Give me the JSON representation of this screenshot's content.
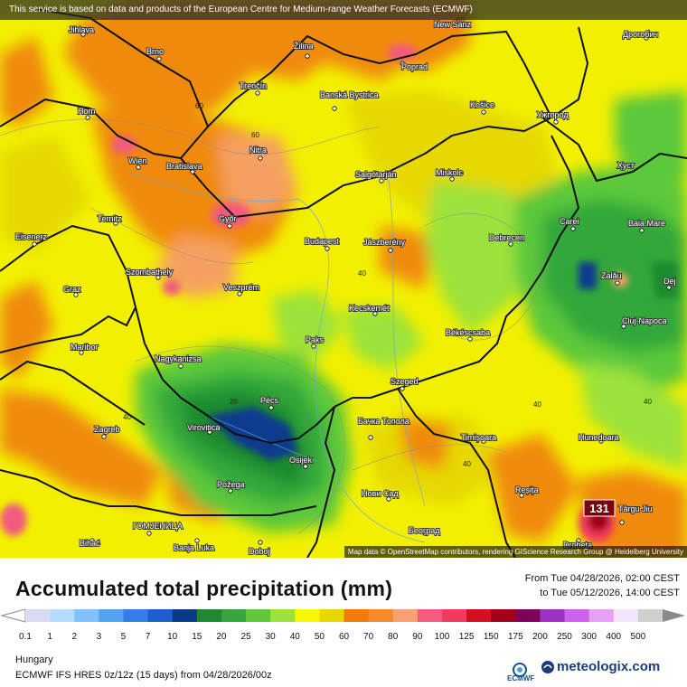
{
  "disclaimer": "This service is based on data and products of the European Centre for Medium-range Weather Forecasts (ECMWF)",
  "attribution": "Map data © OpenStreetMap contributors, rendering GIScience Research Group @ Heidelberg University",
  "title": "Accumulated total precipitation (mm)",
  "period": {
    "from": "From Tue 04/28/2026, 02:00 CEST",
    "to": "to Tue 05/12/2026, 14:00 CEST"
  },
  "region": "Hungary",
  "model_info": "ECMWF IFS HRES 0z/12z (15 days) from 04/28/2026/00z",
  "branding": {
    "ecmwf": "ECMWF",
    "site": "meteologix.com"
  },
  "legend": {
    "labels": [
      "0.1",
      "1",
      "2",
      "3",
      "5",
      "7",
      "10",
      "15",
      "20",
      "25",
      "30",
      "40",
      "50",
      "60",
      "70",
      "80",
      "90",
      "100",
      "125",
      "150",
      "175",
      "200",
      "250",
      "300",
      "400",
      "500"
    ],
    "colors": [
      "#d9d9f2",
      "#b4dcff",
      "#7fc2ff",
      "#4ea4f5",
      "#2f7fe6",
      "#1d5fd0",
      "#0a3a8e",
      "#1e8a2e",
      "#33a83a",
      "#5cc83a",
      "#9be23a",
      "#f7f700",
      "#e8d800",
      "#f07a0a",
      "#f58a2a",
      "#f8a070",
      "#f25a80",
      "#f03a5e",
      "#d41020",
      "#a00018",
      "#80005a",
      "#a030c8",
      "#d060f0",
      "#e8a0f8",
      "#f4e4fb",
      "#d0d0d0"
    ]
  },
  "map": {
    "cities": [
      {
        "name": "Jihlava"
      },
      {
        "name": "Brno"
      },
      {
        "name": "Žilina"
      },
      {
        "name": "Poprad"
      },
      {
        "name": "Дрогобич"
      },
      {
        "name": "Trenčín"
      },
      {
        "name": "Banská Bystrica"
      },
      {
        "name": "Košice"
      },
      {
        "name": "Ужгород"
      },
      {
        "name": "Horn"
      },
      {
        "name": "Wien"
      },
      {
        "name": "Bratislava"
      },
      {
        "name": "Nitra"
      },
      {
        "name": "Salgótarján"
      },
      {
        "name": "Miskolc"
      },
      {
        "name": "Хуст"
      },
      {
        "name": "Ternitz"
      },
      {
        "name": "Győr"
      },
      {
        "name": "Carei"
      },
      {
        "name": "Baia Mare"
      },
      {
        "name": "Eisenerz"
      },
      {
        "name": "Budapest"
      },
      {
        "name": "Jászberény"
      },
      {
        "name": "Debrecen"
      },
      {
        "name": "Szombathely"
      },
      {
        "name": "Zalău"
      },
      {
        "name": "Dej"
      },
      {
        "name": "Graz"
      },
      {
        "name": "Veszprém"
      },
      {
        "name": "Kecskemét"
      },
      {
        "name": "Cluj-Napoca"
      },
      {
        "name": "Békéscsaba"
      },
      {
        "name": "Maribor"
      },
      {
        "name": "Paks"
      },
      {
        "name": "Nagykanizsa"
      },
      {
        "name": "Szeged"
      },
      {
        "name": "Pécs"
      },
      {
        "name": "Zagreb"
      },
      {
        "name": "Virovitica"
      },
      {
        "name": "Бачка Топола"
      },
      {
        "name": "Timișoara"
      },
      {
        "name": "Hunedoara"
      },
      {
        "name": "Osijek"
      },
      {
        "name": "Požega"
      },
      {
        "name": "Нови Сад"
      },
      {
        "name": "Reșița"
      },
      {
        "name": "Târgu Jiu"
      },
      {
        "name": "ГОМЈЕНИЦА"
      },
      {
        "name": "Bihać"
      },
      {
        "name": "Banja Luka"
      },
      {
        "name": "Doboj"
      },
      {
        "name": "Београд"
      },
      {
        "name": "Drobeta"
      },
      {
        "name": "New Sanz"
      }
    ],
    "contour_labels": [
      "60",
      "60",
      "60",
      "40",
      "40",
      "20",
      "40",
      "40",
      "40"
    ],
    "max_marker": "131"
  }
}
